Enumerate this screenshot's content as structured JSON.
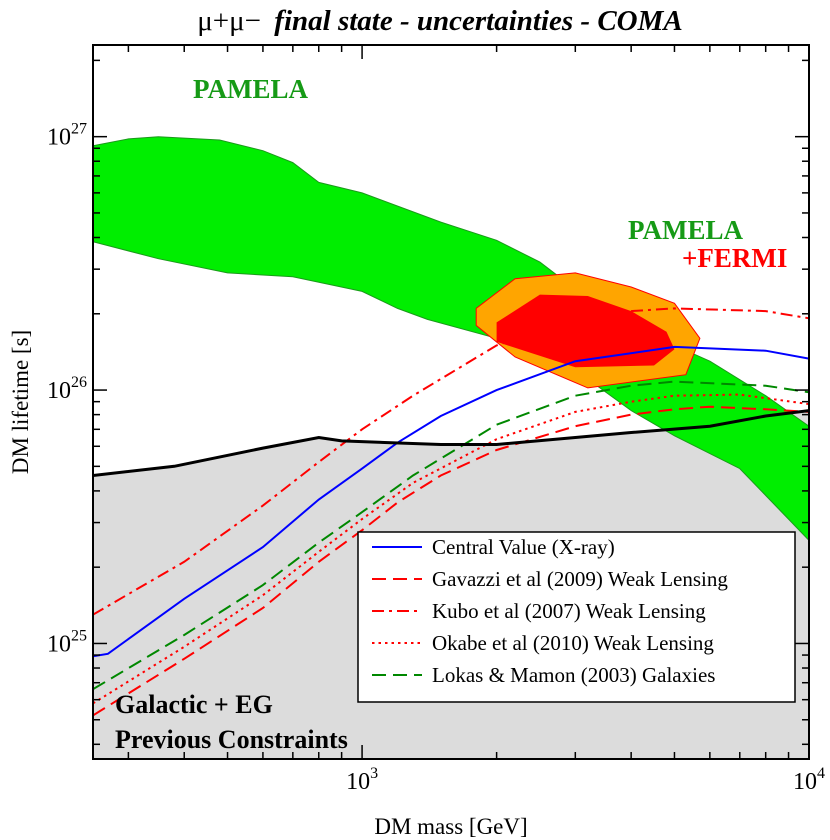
{
  "chart_data": {
    "type": "line",
    "title": {
      "prefix": "μ+μ−",
      "emphasis": "final state - uncertainties - COMA"
    },
    "xlabel": "DM mass [GeV]",
    "ylabel": "DM lifetime [s]",
    "x_scale": "log",
    "y_scale": "log",
    "xlim": [
      250,
      10000
    ],
    "ylim": [
      3.5e+24,
      2.3e+27
    ],
    "x_ticks": [
      {
        "base": "10",
        "exp": "3",
        "value": 1000
      },
      {
        "base": "10",
        "exp": "4",
        "value": 10000
      }
    ],
    "y_ticks": [
      {
        "base": "10",
        "exp": "25",
        "value": 1e+25
      },
      {
        "base": "10",
        "exp": "26",
        "value": 1e+26
      },
      {
        "base": "10",
        "exp": "27",
        "value": 1e+27
      }
    ],
    "colors": {
      "previous": "#dcdcdc",
      "pamela": "#00ee00",
      "pamela_edge": "#1a9a1a",
      "fermi_outer": "#ffa500",
      "fermi_inner": "#ff0000",
      "central": "#0000ff",
      "red": "#ff0000",
      "green": "#008800",
      "black": "#000000"
    },
    "regions": {
      "previous_constraints": {
        "label_line1": "Galactic + EG",
        "label_line2": "Previous Constraints",
        "boundary": [
          [
            250,
            4.6e+25
          ],
          [
            380,
            5e+25
          ],
          [
            600,
            5.9e+25
          ],
          [
            800,
            6.5e+25
          ],
          [
            900,
            6.3e+25
          ],
          [
            1500,
            6.1e+25
          ],
          [
            2000,
            6.1e+25
          ],
          [
            3000,
            6.5e+25
          ],
          [
            4000,
            6.8e+25
          ],
          [
            6000,
            7.2e+25
          ],
          [
            8000,
            7.9e+25
          ],
          [
            10000,
            8.3e+25
          ]
        ]
      },
      "pamela_band": {
        "label": "PAMELA",
        "upper": [
          [
            250,
            9.2e+26
          ],
          [
            300,
            9.8e+26
          ],
          [
            350,
            1e+27
          ],
          [
            480,
            9.7e+26
          ],
          [
            600,
            8.8e+26
          ],
          [
            700,
            7.9e+26
          ],
          [
            800,
            6.6e+26
          ],
          [
            1000,
            6e+26
          ],
          [
            1500,
            4.6e+26
          ],
          [
            2000,
            3.9e+26
          ],
          [
            2500,
            3.2e+26
          ],
          [
            3000,
            2.5e+26
          ],
          [
            5000,
            1.5e+26
          ],
          [
            6000,
            1.3e+26
          ],
          [
            8000,
            9.5e+25
          ],
          [
            10000,
            7.2e+25
          ]
        ],
        "lower": [
          [
            250,
            3.85e+26
          ],
          [
            350,
            3.3e+26
          ],
          [
            500,
            2.9e+26
          ],
          [
            700,
            2.8e+26
          ],
          [
            1000,
            2.45e+26
          ],
          [
            1200,
            2.1e+26
          ],
          [
            1400,
            1.9e+26
          ],
          [
            2000,
            1.6e+26
          ],
          [
            3000,
            1.2e+26
          ],
          [
            4000,
            8.3e+25
          ],
          [
            5000,
            6.6e+25
          ],
          [
            7000,
            4.9e+25
          ],
          [
            10000,
            2.55e+25
          ]
        ]
      },
      "pamela_fermi": {
        "label_line1": "PAMELA",
        "label_line2": "+FERMI",
        "outer": [
          [
            1800,
            2.1e+26
          ],
          [
            2200,
            2.75e+26
          ],
          [
            3000,
            2.9e+26
          ],
          [
            4000,
            2.55e+26
          ],
          [
            5000,
            2.2e+26
          ],
          [
            5700,
            1.6e+26
          ],
          [
            5300,
            1.15e+26
          ],
          [
            3200,
            1.02e+26
          ],
          [
            2200,
            1.35e+26
          ],
          [
            1800,
            1.8e+26
          ]
        ],
        "inner": [
          [
            2000,
            1.85e+26
          ],
          [
            2500,
            2.38e+26
          ],
          [
            3200,
            2.35e+26
          ],
          [
            4000,
            2.05e+26
          ],
          [
            4800,
            1.7e+26
          ],
          [
            5000,
            1.45e+26
          ],
          [
            4500,
            1.25e+26
          ],
          [
            3000,
            1.23e+26
          ],
          [
            2000,
            1.55e+26
          ]
        ]
      }
    },
    "series": [
      {
        "name": "Central Value (X-ray)",
        "style": "solid",
        "color": "#0000ff",
        "width": 2,
        "points": [
          [
            250,
            8.9e+24
          ],
          [
            270,
            9.1e+24
          ],
          [
            400,
            1.5e+25
          ],
          [
            600,
            2.4e+25
          ],
          [
            800,
            3.7e+25
          ],
          [
            1000,
            4.9e+25
          ],
          [
            1200,
            6.2e+25
          ],
          [
            1500,
            7.9e+25
          ],
          [
            2000,
            1e+26
          ],
          [
            3000,
            1.3e+26
          ],
          [
            5000,
            1.48e+26
          ],
          [
            8000,
            1.43e+26
          ],
          [
            10000,
            1.33e+26
          ]
        ]
      },
      {
        "name": "Gavazzi et al (2009) Weak Lensing",
        "style": "dashed",
        "color": "#ff0000",
        "width": 2,
        "points": [
          [
            250,
            5.2e+24
          ],
          [
            400,
            8.7e+24
          ],
          [
            600,
            1.38e+25
          ],
          [
            800,
            2.1e+25
          ],
          [
            1000,
            2.8e+25
          ],
          [
            1200,
            3.6e+25
          ],
          [
            1500,
            4.6e+25
          ],
          [
            2000,
            5.8e+25
          ],
          [
            3000,
            7.2e+25
          ],
          [
            4000,
            8e+25
          ],
          [
            5000,
            8.4e+25
          ],
          [
            6000,
            8.6e+25
          ],
          [
            8000,
            8.4e+25
          ],
          [
            10000,
            8.2e+25
          ]
        ]
      },
      {
        "name": "Kubo et al (2007) Weak Lensing",
        "style": "dashdot",
        "color": "#ff0000",
        "width": 2,
        "points": [
          [
            250,
            1.3e+25
          ],
          [
            400,
            2.1e+25
          ],
          [
            600,
            3.5e+25
          ],
          [
            800,
            5.2e+25
          ],
          [
            1000,
            7e+25
          ],
          [
            1300,
            9.5e+25
          ],
          [
            2000,
            1.5e+26
          ],
          [
            3000,
            1.9e+26
          ],
          [
            4000,
            2.05e+26
          ],
          [
            5000,
            2.1e+26
          ],
          [
            8000,
            2.05e+26
          ],
          [
            10000,
            1.92e+26
          ]
        ]
      },
      {
        "name": "Okabe et al (2010) Weak Lensing",
        "style": "dotted",
        "color": "#ff0000",
        "width": 2,
        "points": [
          [
            250,
            5.8e+24
          ],
          [
            400,
            9.7e+24
          ],
          [
            600,
            1.55e+25
          ],
          [
            800,
            2.3e+25
          ],
          [
            1000,
            3.1e+25
          ],
          [
            1300,
            4.3e+25
          ],
          [
            2000,
            6.4e+25
          ],
          [
            3000,
            8.2e+25
          ],
          [
            4000,
            9e+25
          ],
          [
            5000,
            9.5e+25
          ],
          [
            7000,
            9.6e+25
          ],
          [
            10000,
            8.8e+25
          ]
        ]
      },
      {
        "name": "Lokas & Mamon (2003) Galaxies",
        "style": "dashed",
        "color": "#008800",
        "width": 2,
        "points": [
          [
            250,
            6.6e+24
          ],
          [
            400,
            1.08e+25
          ],
          [
            600,
            1.7e+25
          ],
          [
            800,
            2.5e+25
          ],
          [
            1000,
            3.3e+25
          ],
          [
            1300,
            4.6e+25
          ],
          [
            2000,
            7.3e+25
          ],
          [
            3000,
            9.5e+25
          ],
          [
            4000,
            1.04e+26
          ],
          [
            5000,
            1.08e+26
          ],
          [
            8000,
            1.04e+26
          ],
          [
            10000,
            9.8e+25
          ]
        ]
      },
      {
        "name": "previous-constraints-edge",
        "legend": false,
        "style": "solid",
        "color": "#000000",
        "width": 3,
        "points": [
          [
            250,
            4.6e+25
          ],
          [
            380,
            5e+25
          ],
          [
            600,
            5.9e+25
          ],
          [
            800,
            6.5e+25
          ],
          [
            900,
            6.3e+25
          ],
          [
            1500,
            6.1e+25
          ],
          [
            2000,
            6.1e+25
          ],
          [
            3000,
            6.5e+25
          ],
          [
            4000,
            6.8e+25
          ],
          [
            6000,
            7.2e+25
          ],
          [
            8000,
            7.9e+25
          ],
          [
            10000,
            8.3e+25
          ]
        ]
      }
    ],
    "legend_position": "lower-right"
  }
}
